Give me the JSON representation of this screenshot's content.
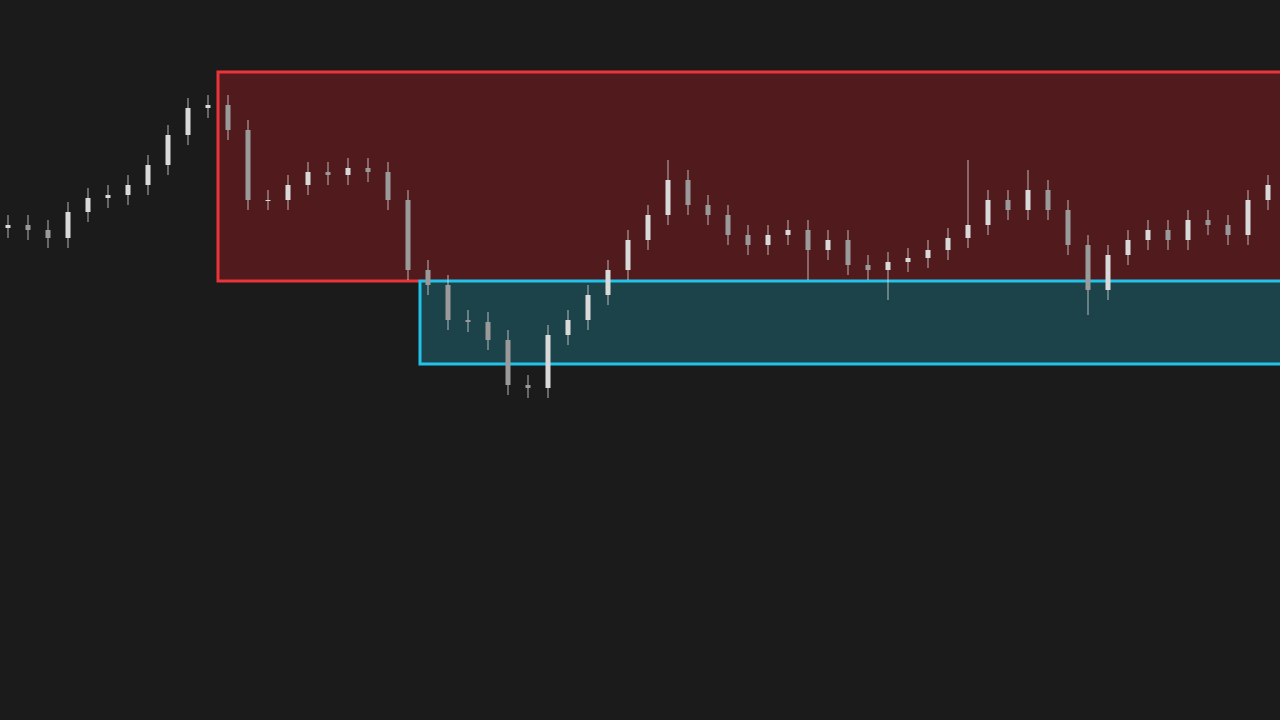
{
  "chart_data": {
    "type": "candlestick",
    "color": "#d9d9d9",
    "background": "#1b1b1b",
    "categories": [
      null,
      null,
      null,
      null,
      null,
      null,
      null,
      null,
      null,
      null,
      null,
      null,
      null,
      null,
      null,
      null,
      null,
      null,
      null,
      null,
      null,
      null,
      null,
      null,
      null,
      null,
      null,
      null,
      null,
      null,
      null,
      null,
      null,
      null,
      null,
      null,
      null,
      null,
      null,
      null,
      null,
      null,
      null,
      null,
      null,
      null,
      null,
      null,
      null,
      null,
      null,
      null,
      null,
      null,
      null,
      null,
      null,
      null,
      null,
      null,
      null,
      null,
      null,
      null
    ],
    "open": [
      49.2,
      49.5,
      49.0,
      48.2,
      50.8,
      52.2,
      52.5,
      53.5,
      55.5,
      58.5,
      61.2,
      61.5,
      59.0,
      52.0,
      52.0,
      53.5,
      54.8,
      54.5,
      55.2,
      54.8,
      52.0,
      45.0,
      43.5,
      40.0,
      39.8,
      38.0,
      33.5,
      33.2,
      38.5,
      40.0,
      42.5,
      45.0,
      48.0,
      50.5,
      54.0,
      51.5,
      50.5,
      48.5,
      47.5,
      48.5,
      49.0,
      47.0,
      48.0,
      45.5,
      45.0,
      45.8,
      46.2,
      47.0,
      48.2,
      49.5,
      52.0,
      51.0,
      53.0,
      51.0,
      47.5,
      43.0,
      46.5,
      48.0,
      49.0,
      48.0,
      50.0,
      49.5,
      48.5,
      52.0
    ],
    "high": [
      50.5,
      50.5,
      50.0,
      51.8,
      53.2,
      53.5,
      54.5,
      56.5,
      59.5,
      62.2,
      62.5,
      62.5,
      60.0,
      53.0,
      54.5,
      55.8,
      55.8,
      56.2,
      56.2,
      55.8,
      53.0,
      46.0,
      44.5,
      41.0,
      40.8,
      39.0,
      34.5,
      39.5,
      41.0,
      43.5,
      46.0,
      49.0,
      51.5,
      56.0,
      55.0,
      52.5,
      51.5,
      49.5,
      49.5,
      50.0,
      50.0,
      49.0,
      49.0,
      46.5,
      46.8,
      47.2,
      48.0,
      49.2,
      56.0,
      53.0,
      53.0,
      55.0,
      54.0,
      52.0,
      48.5,
      47.5,
      49.0,
      50.0,
      50.0,
      51.0,
      51.0,
      50.5,
      53.0,
      54.5
    ],
    "low": [
      48.2,
      48.0,
      47.2,
      47.2,
      49.8,
      51.2,
      51.5,
      52.5,
      54.5,
      57.5,
      60.2,
      58.0,
      51.0,
      51.0,
      51.0,
      52.5,
      53.5,
      53.5,
      53.8,
      51.0,
      44.0,
      42.5,
      39.0,
      38.8,
      37.0,
      32.5,
      32.2,
      32.2,
      37.5,
      39.0,
      41.5,
      44.0,
      47.0,
      49.5,
      50.5,
      49.5,
      47.5,
      46.5,
      46.5,
      47.5,
      44.0,
      46.0,
      44.5,
      44.0,
      42.0,
      44.8,
      45.2,
      46.0,
      47.2,
      48.5,
      50.0,
      50.0,
      50.0,
      46.5,
      40.5,
      42.0,
      45.5,
      47.0,
      47.0,
      47.0,
      48.5,
      47.5,
      47.5,
      51.0
    ],
    "close": [
      49.5,
      49.0,
      48.2,
      50.8,
      52.2,
      52.5,
      53.5,
      55.5,
      58.5,
      61.2,
      61.5,
      59.0,
      52.0,
      52.0,
      53.5,
      54.8,
      54.5,
      55.2,
      54.8,
      52.0,
      45.0,
      43.5,
      40.0,
      39.8,
      38.0,
      33.5,
      33.2,
      38.5,
      40.0,
      42.5,
      45.0,
      48.0,
      50.5,
      54.0,
      51.5,
      50.5,
      48.5,
      47.5,
      48.5,
      49.0,
      47.0,
      48.0,
      45.5,
      45.0,
      45.8,
      46.2,
      47.0,
      48.2,
      49.5,
      52.0,
      51.0,
      53.0,
      51.0,
      47.5,
      43.0,
      46.5,
      48.0,
      49.0,
      48.0,
      50.0,
      49.5,
      48.5,
      52.0,
      53.5
    ],
    "ylim": [
      0,
      72
    ],
    "zones": [
      {
        "start": 10.5,
        "low": 43.9,
        "high": 64.8,
        "color": "#e8343a",
        "fill": "#5a1b1d"
      },
      {
        "start": 20.6,
        "low": 35.6,
        "high": 43.9,
        "color": "#22c3ea",
        "fill": "#1d4a52"
      }
    ]
  }
}
